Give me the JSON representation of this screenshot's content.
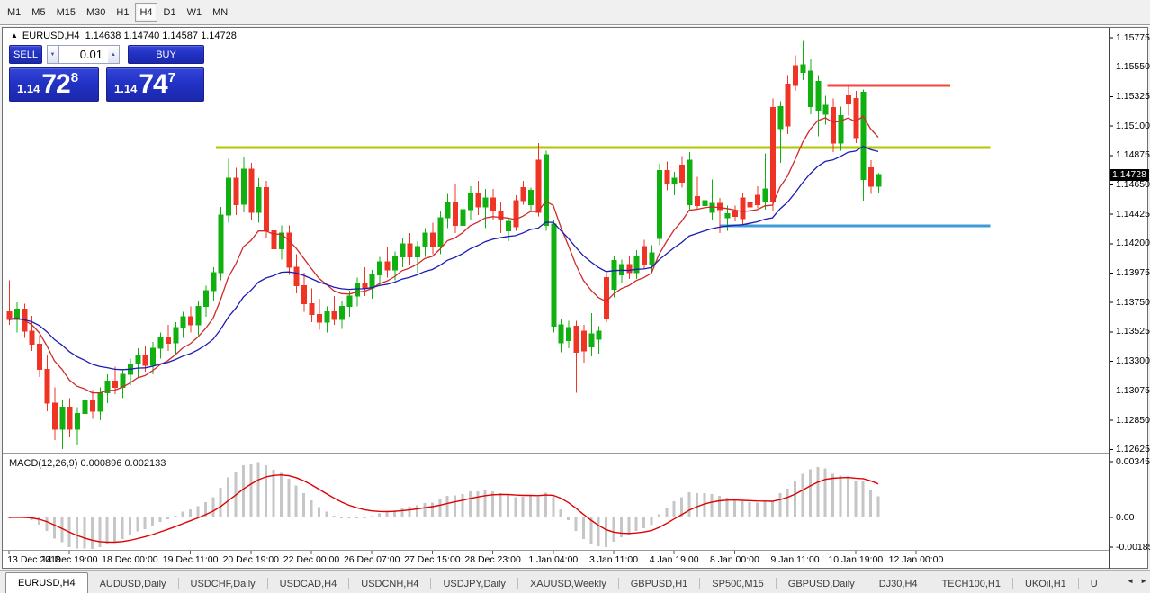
{
  "toolbar": {
    "timeframes": [
      "M1",
      "M5",
      "M15",
      "M30",
      "H1",
      "H4",
      "D1",
      "W1",
      "MN"
    ],
    "active_timeframe": "H4"
  },
  "chart": {
    "collapse_arrow": "▲",
    "symbol_label": "EURUSD,H4",
    "ohlc_text": "1.14638 1.14740 1.14587 1.14728",
    "trade_panel": {
      "sell_label": "SELL",
      "buy_label": "BUY",
      "volume": "0.01",
      "spin_down_icon": "▼",
      "spin_up_icon": "▲",
      "sell_price_big": "1.14",
      "sell_price_main": "72",
      "sell_price_sup": "8",
      "buy_price_big": "1.14",
      "buy_price_main": "74",
      "buy_price_sup": "7"
    },
    "price_axis": {
      "labels": [
        "1.15775",
        "1.15550",
        "1.15325",
        "1.15100",
        "1.14875",
        "1.14650",
        "1.14425",
        "1.14200",
        "1.13975",
        "1.13750",
        "1.13525",
        "1.13300",
        "1.13075",
        "1.12850",
        "1.12625"
      ],
      "current_price": "1.14728"
    },
    "time_axis": [
      "13 Dec 2018",
      "14 Dec 19:00",
      "18 Dec 00:00",
      "19 Dec 11:00",
      "20 Dec 19:00",
      "22 Dec 00:00",
      "26 Dec 07:00",
      "27 Dec 15:00",
      "28 Dec 23:00",
      "1 Jan 04:00",
      "3 Jan 11:00",
      "4 Jan 19:00",
      "8 Jan 00:00",
      "9 Jan 11:00",
      "10 Jan 19:00",
      "12 Jan 00:00"
    ]
  },
  "indicator": {
    "label": "MACD(12,26,9)",
    "value": "0.000896",
    "signal_value": "0.002133",
    "axis_labels": [
      "0.003452",
      "0.00",
      "-0.001851"
    ]
  },
  "chart_data": {
    "type": "candlestick",
    "title": "EURUSD,H4",
    "ylim": [
      1.12625,
      1.15775
    ],
    "grid": false,
    "candles": [
      [
        1.1368,
        1.1392,
        1.1358,
        1.1362
      ],
      [
        1.1362,
        1.1375,
        1.1352,
        1.137
      ],
      [
        1.137,
        1.1374,
        1.1348,
        1.1353
      ],
      [
        1.1353,
        1.1365,
        1.1338,
        1.1343
      ],
      [
        1.1343,
        1.135,
        1.1318,
        1.1324
      ],
      [
        1.1324,
        1.1335,
        1.1292,
        1.1298
      ],
      [
        1.1298,
        1.131,
        1.127,
        1.1278
      ],
      [
        1.1278,
        1.13,
        1.1263,
        1.1295
      ],
      [
        1.1295,
        1.1302,
        1.1272,
        1.1278
      ],
      [
        1.1278,
        1.1295,
        1.1266,
        1.129
      ],
      [
        1.129,
        1.1305,
        1.1282,
        1.13
      ],
      [
        1.13,
        1.1308,
        1.1286,
        1.1292
      ],
      [
        1.1292,
        1.131,
        1.1285,
        1.1306
      ],
      [
        1.1306,
        1.132,
        1.1298,
        1.1315
      ],
      [
        1.1315,
        1.1326,
        1.1305,
        1.131
      ],
      [
        1.131,
        1.1324,
        1.1302,
        1.132
      ],
      [
        1.132,
        1.1332,
        1.1312,
        1.1328
      ],
      [
        1.1328,
        1.134,
        1.1318,
        1.1335
      ],
      [
        1.1335,
        1.1342,
        1.1322,
        1.1327
      ],
      [
        1.1327,
        1.1345,
        1.132,
        1.134
      ],
      [
        1.134,
        1.1352,
        1.1332,
        1.1348
      ],
      [
        1.1348,
        1.1358,
        1.1338,
        1.1344
      ],
      [
        1.1344,
        1.136,
        1.1336,
        1.1356
      ],
      [
        1.1356,
        1.1368,
        1.1348,
        1.1364
      ],
      [
        1.1364,
        1.1372,
        1.1352,
        1.1358
      ],
      [
        1.1358,
        1.1376,
        1.135,
        1.1372
      ],
      [
        1.1372,
        1.1388,
        1.1364,
        1.1384
      ],
      [
        1.1384,
        1.1402,
        1.1376,
        1.1398
      ],
      [
        1.1398,
        1.1448,
        1.1392,
        1.1442
      ],
      [
        1.1442,
        1.1485,
        1.1436,
        1.147
      ],
      [
        1.147,
        1.1478,
        1.1442,
        1.145
      ],
      [
        1.145,
        1.1486,
        1.1444,
        1.1477
      ],
      [
        1.1477,
        1.1482,
        1.1438,
        1.1444
      ],
      [
        1.1444,
        1.147,
        1.1436,
        1.1463
      ],
      [
        1.1463,
        1.1468,
        1.1424,
        1.143
      ],
      [
        1.143,
        1.1442,
        1.141,
        1.1416
      ],
      [
        1.1416,
        1.1434,
        1.1408,
        1.1428
      ],
      [
        1.1428,
        1.1434,
        1.1396,
        1.1402
      ],
      [
        1.1402,
        1.1412,
        1.1382,
        1.1388
      ],
      [
        1.1388,
        1.1398,
        1.1368,
        1.1374
      ],
      [
        1.1374,
        1.1386,
        1.136,
        1.1366
      ],
      [
        1.1366,
        1.1378,
        1.1354,
        1.136
      ],
      [
        1.136,
        1.1372,
        1.1352,
        1.1368
      ],
      [
        1.1368,
        1.138,
        1.1358,
        1.1362
      ],
      [
        1.1362,
        1.1376,
        1.1355,
        1.1372
      ],
      [
        1.1372,
        1.1384,
        1.1364,
        1.138
      ],
      [
        1.138,
        1.1394,
        1.1372,
        1.139
      ],
      [
        1.139,
        1.1402,
        1.138,
        1.1386
      ],
      [
        1.1386,
        1.14,
        1.1378,
        1.1396
      ],
      [
        1.1396,
        1.141,
        1.1388,
        1.1406
      ],
      [
        1.1406,
        1.1418,
        1.1394,
        1.14
      ],
      [
        1.14,
        1.1414,
        1.1392,
        1.141
      ],
      [
        1.141,
        1.1424,
        1.1402,
        1.142
      ],
      [
        1.142,
        1.1428,
        1.1404,
        1.141
      ],
      [
        1.141,
        1.1422,
        1.1398,
        1.1418
      ],
      [
        1.1418,
        1.1432,
        1.141,
        1.1428
      ],
      [
        1.1428,
        1.1436,
        1.1412,
        1.1418
      ],
      [
        1.1418,
        1.1445,
        1.1412,
        1.144
      ],
      [
        1.144,
        1.1458,
        1.1432,
        1.1452
      ],
      [
        1.1452,
        1.1466,
        1.1428,
        1.1434
      ],
      [
        1.1434,
        1.145,
        1.1426,
        1.1446
      ],
      [
        1.1446,
        1.1464,
        1.1438,
        1.1458
      ],
      [
        1.1458,
        1.1468,
        1.1442,
        1.1448
      ],
      [
        1.1448,
        1.1462,
        1.1432,
        1.1455
      ],
      [
        1.1455,
        1.1462,
        1.1438,
        1.1445
      ],
      [
        1.1445,
        1.1452,
        1.1428,
        1.1438
      ],
      [
        1.143,
        1.144,
        1.1422,
        1.1437
      ],
      [
        1.1453,
        1.1457,
        1.143,
        1.1433
      ],
      [
        1.1463,
        1.1468,
        1.145,
        1.1453
      ],
      [
        1.145,
        1.1463,
        1.1445,
        1.1461
      ],
      [
        1.1484,
        1.1497,
        1.1441,
        1.1444
      ],
      [
        1.1434,
        1.1491,
        1.143,
        1.1488
      ],
      [
        1.1357,
        1.1438,
        1.1352,
        1.1435
      ],
      [
        1.1344,
        1.1362,
        1.1337,
        1.1358
      ],
      [
        1.1346,
        1.1361,
        1.134,
        1.1356
      ],
      [
        1.1357,
        1.1361,
        1.1306,
        1.1337
      ],
      [
        1.1353,
        1.1358,
        1.1329,
        1.1338
      ],
      [
        1.1341,
        1.1367,
        1.1334,
        1.1351
      ],
      [
        1.1347,
        1.1357,
        1.1336,
        1.1353
      ],
      [
        1.1394,
        1.1398,
        1.136,
        1.1363
      ],
      [
        1.1385,
        1.1411,
        1.1379,
        1.1407
      ],
      [
        1.1396,
        1.1408,
        1.139,
        1.1404
      ],
      [
        1.1404,
        1.1411,
        1.1393,
        1.1398
      ],
      [
        1.1398,
        1.1415,
        1.1393,
        1.141
      ],
      [
        1.1418,
        1.1423,
        1.1401,
        1.1404
      ],
      [
        1.1404,
        1.1419,
        1.1398,
        1.1413
      ],
      [
        1.1424,
        1.1481,
        1.1419,
        1.1476
      ],
      [
        1.1476,
        1.1483,
        1.1461,
        1.1466
      ],
      [
        1.1466,
        1.1475,
        1.1457,
        1.147
      ],
      [
        1.148,
        1.1487,
        1.1463,
        1.1467
      ],
      [
        1.145,
        1.149,
        1.1446,
        1.1484
      ],
      [
        1.1456,
        1.1471,
        1.1446,
        1.1449
      ],
      [
        1.1449,
        1.1459,
        1.1441,
        1.1453
      ],
      [
        1.1444,
        1.1469,
        1.1438,
        1.1451
      ],
      [
        1.1451,
        1.1455,
        1.1428,
        1.1446
      ],
      [
        1.144,
        1.1449,
        1.143,
        1.1443
      ],
      [
        1.1445,
        1.1449,
        1.1437,
        1.1441
      ],
      [
        1.1455,
        1.1459,
        1.1434,
        1.1439
      ],
      [
        1.1452,
        1.1457,
        1.144,
        1.1448
      ],
      [
        1.1457,
        1.1464,
        1.1447,
        1.145
      ],
      [
        1.1452,
        1.1489,
        1.1446,
        1.1462
      ],
      [
        1.1524,
        1.1531,
        1.1445,
        1.1452
      ],
      [
        1.1508,
        1.1529,
        1.1482,
        1.1525
      ],
      [
        1.1542,
        1.1549,
        1.1504,
        1.151
      ],
      [
        1.1556,
        1.1564,
        1.1537,
        1.1541
      ],
      [
        1.1551,
        1.1575,
        1.1545,
        1.1557
      ],
      [
        1.1525,
        1.1561,
        1.1519,
        1.1552
      ],
      [
        1.1522,
        1.1549,
        1.1502,
        1.1544
      ],
      [
        1.1519,
        1.1533,
        1.1511,
        1.1526
      ],
      [
        1.1524,
        1.1531,
        1.149,
        1.1497
      ],
      [
        1.1497,
        1.1525,
        1.1491,
        1.1518
      ],
      [
        1.1533,
        1.1542,
        1.1518,
        1.1527
      ],
      [
        1.1531,
        1.1537,
        1.1497,
        1.1501
      ],
      [
        1.1469,
        1.1538,
        1.1453,
        1.1536
      ],
      [
        1.1478,
        1.1484,
        1.1458,
        1.1464
      ],
      [
        1.14638,
        1.1474,
        1.14587,
        1.14728
      ]
    ],
    "overlays": {
      "ma_fast": {
        "period": 10,
        "color": "#cf2a2a"
      },
      "ma_slow": {
        "period": 24,
        "color": "#1c1cb4"
      }
    },
    "hlines": [
      {
        "name": "resistance-yellow",
        "price": 1.14935,
        "i1": 27.4,
        "i2": 129.8,
        "color": "#b3c400",
        "width": 3
      },
      {
        "name": "resistance-red",
        "price": 1.1541,
        "i1": 108.3,
        "i2": 124.5,
        "color": "#f4453f",
        "width": 3
      },
      {
        "name": "support-blue",
        "price": 1.14338,
        "i1": 94.0,
        "i2": 129.8,
        "color": "#3f9bd8",
        "width": 3
      }
    ],
    "macd": {
      "fast": 12,
      "slow": 26,
      "signal": 9,
      "ylim": [
        -0.001851,
        0.003452
      ],
      "hist_color": "#c6c6c6",
      "signal_color": "#e10000"
    },
    "colors": {
      "bull": "#10b010",
      "bear": "#ef3426",
      "background": "#ffffff",
      "badge_bg": "#000000",
      "badge_fg": "#ffffff"
    }
  },
  "tabs": {
    "items": [
      "EURUSD,H4",
      "AUDUSD,Daily",
      "USDCHF,Daily",
      "USDCAD,H4",
      "USDCNH,H4",
      "USDJPY,Daily",
      "XAUUSD,Weekly",
      "GBPUSD,H1",
      "SP500,M15",
      "GBPUSD,Daily",
      "DJ30,H4",
      "TECH100,H1",
      "UKOil,H1",
      "U"
    ],
    "active": "EURUSD,H4",
    "scroll_left_icon": "◄",
    "scroll_right_icon": "►"
  }
}
